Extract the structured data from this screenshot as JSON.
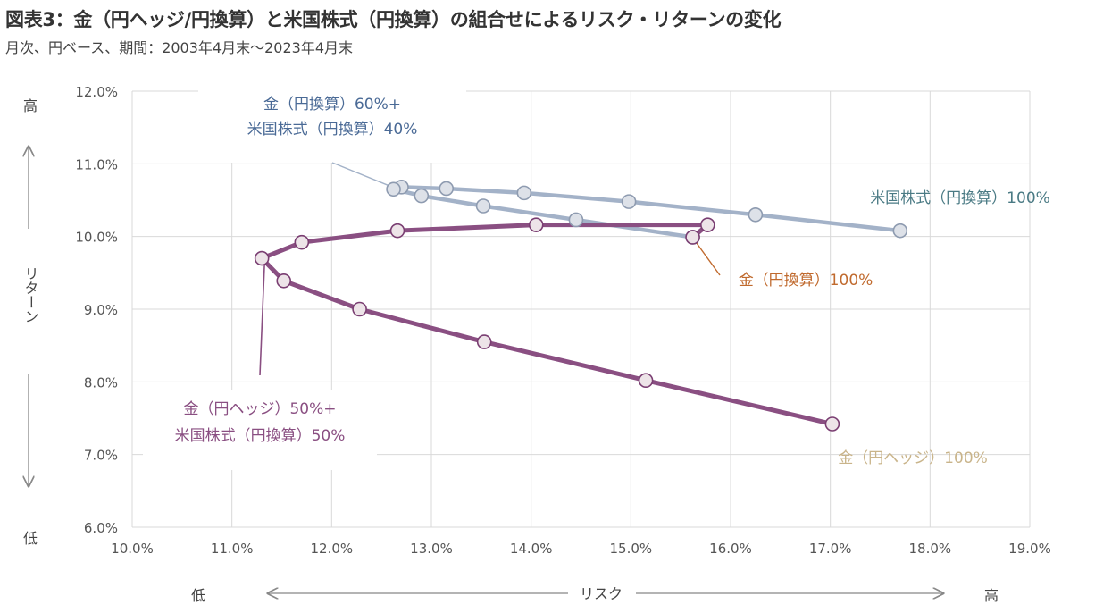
{
  "header": {
    "title": "図表3：金（円ヘッジ/円換算）と米国株式（円換算）の組合せによるリスク・リターンの変化",
    "subtitle": "月次、円ベース、期間：2003年4月末～2023年4月末"
  },
  "axes": {
    "y_high": "高",
    "y_low": "低",
    "y_label": "リターン",
    "x_low": "低",
    "x_high": "高",
    "x_label": "リスク"
  },
  "colors": {
    "purple": "#8a4f82",
    "grayblue": "#a3b2c8",
    "marker_fill": "#ede4e8",
    "marker_gray_fill": "#dde1e8",
    "marker_stroke": "#7a3e72",
    "marker_gray_stroke": "#8e9bb0",
    "grid": "#d9d9d9",
    "annotation_blue": "#4a6a96",
    "annotation_teal": "#4a7a84",
    "annotation_orange": "#c06a2e",
    "annotation_tan": "#c9b48a",
    "annotation_purple": "#8a4f82"
  },
  "annotations": {
    "mix_60_40_line1": "金（円換算）60%+",
    "mix_60_40_line2": "米国株式（円換算）40%",
    "us_stock_100": "米国株式（円換算）100%",
    "gold_yen_100": "金（円換算）100%",
    "mix_50_50_line1": "金（円ヘッジ）50%+",
    "mix_50_50_line2": "米国株式（円換算）50%",
    "gold_hedge_100": "金（円ヘッジ）100%"
  },
  "chart_data": {
    "type": "line",
    "xlabel": "リスク",
    "ylabel": "リターン",
    "xlim": [
      10.0,
      19.0
    ],
    "ylim": [
      6.0,
      12.0
    ],
    "x_ticks": [
      "10.0%",
      "11.0%",
      "12.0%",
      "13.0%",
      "14.0%",
      "15.0%",
      "16.0%",
      "17.0%",
      "18.0%",
      "19.0%"
    ],
    "y_ticks": [
      "6.0%",
      "7.0%",
      "8.0%",
      "9.0%",
      "10.0%",
      "11.0%",
      "12.0%"
    ],
    "grid": true,
    "series": [
      {
        "style": "gray",
        "points": [
          [
            17.7,
            10.08
          ],
          [
            16.25,
            10.3
          ],
          [
            14.98,
            10.48
          ],
          [
            13.93,
            10.6
          ],
          [
            13.15,
            10.66
          ],
          [
            12.7,
            10.68
          ],
          [
            12.62,
            10.65
          ],
          [
            12.9,
            10.56
          ],
          [
            13.52,
            10.42
          ],
          [
            14.45,
            10.23
          ],
          [
            15.62,
            9.99
          ]
        ]
      },
      {
        "style": "purple",
        "points": [
          [
            15.62,
            9.99
          ],
          [
            15.77,
            10.16
          ],
          [
            14.05,
            10.16
          ],
          [
            12.66,
            10.08
          ],
          [
            11.7,
            9.92
          ],
          [
            11.3,
            9.7
          ],
          [
            11.52,
            9.39
          ],
          [
            12.28,
            9.0
          ],
          [
            13.53,
            8.55
          ],
          [
            15.15,
            8.02
          ],
          [
            17.02,
            7.42
          ]
        ]
      }
    ]
  }
}
